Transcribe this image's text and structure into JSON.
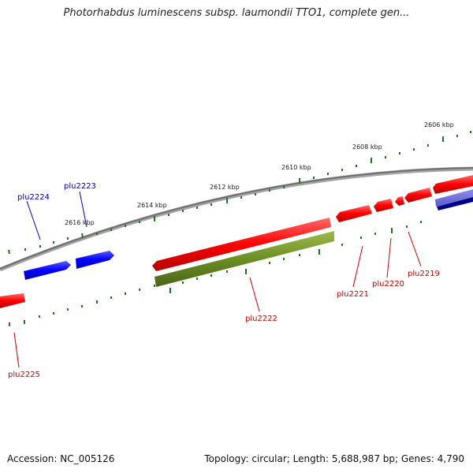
{
  "title": "Photorhabdus luminescens subsp. laumondii TTO1, complete gen...",
  "footer": {
    "accession": "Accession: NC_005126",
    "summary": "Topology: circular; Length: 5,688,987 bp; Genes: 4,790"
  },
  "scale_ticks": [
    {
      "label": "2606 kbp"
    },
    {
      "label": "2608 kbp"
    },
    {
      "label": "2610 kbp"
    },
    {
      "label": "2612 kbp"
    },
    {
      "label": "2614 kbp"
    },
    {
      "label": "2616 kbp"
    }
  ],
  "genes": [
    {
      "name": "plu2224",
      "strand": "forward"
    },
    {
      "name": "plu2223",
      "strand": "forward"
    },
    {
      "name": "plu2225",
      "strand": "reverse"
    },
    {
      "name": "plu2222",
      "strand": "reverse"
    },
    {
      "name": "plu2221",
      "strand": "reverse"
    },
    {
      "name": "plu2220",
      "strand": "reverse"
    },
    {
      "name": "plu2219",
      "strand": "reverse"
    }
  ],
  "colors": {
    "forward_cds": "#0000ff",
    "reverse_cds": "#ff0000",
    "reverse_cds_track2": "#6b8e23",
    "forward_track2": "#6a6ad8",
    "forward_track2_dark": "#00008b",
    "backbone": "#808080",
    "tick": "#006400"
  }
}
